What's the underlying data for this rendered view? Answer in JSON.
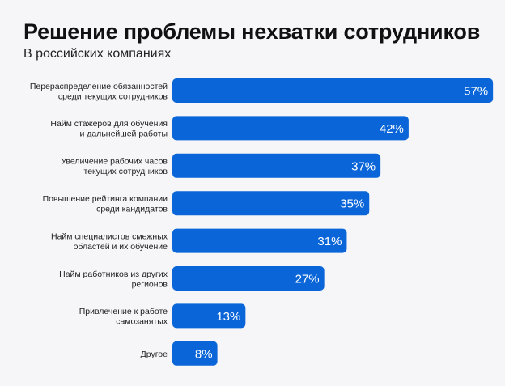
{
  "chart_data": {
    "type": "bar",
    "orientation": "horizontal",
    "title": "Решение проблемы нехватки сотрудников",
    "subtitle": "В российских компаниях",
    "categories": [
      [
        "Перераспределение обязанностей",
        "среди текущих сотрудников"
      ],
      [
        "Найм стажеров для обучения",
        "и дальнейшей работы"
      ],
      [
        "Увеличение рабочих часов",
        "текущих сотрудников"
      ],
      [
        "Повышение рейтинга компании",
        "среди кандидатов"
      ],
      [
        "Найм специалистов смежных",
        "областей и их обучение"
      ],
      [
        "Найм работников из других",
        "регионов"
      ],
      [
        "Привлечение к работе",
        "самозанятых"
      ],
      [
        "Другое"
      ]
    ],
    "values": [
      57,
      42,
      37,
      35,
      31,
      27,
      13,
      8
    ],
    "value_labels": [
      "57%",
      "42%",
      "37%",
      "35%",
      "31%",
      "27%",
      "13%",
      "8%"
    ],
    "unit": "%",
    "grid": false,
    "legend": "none",
    "colors": {
      "bar": "#0a66d8",
      "background": "#f6f6f9"
    }
  }
}
